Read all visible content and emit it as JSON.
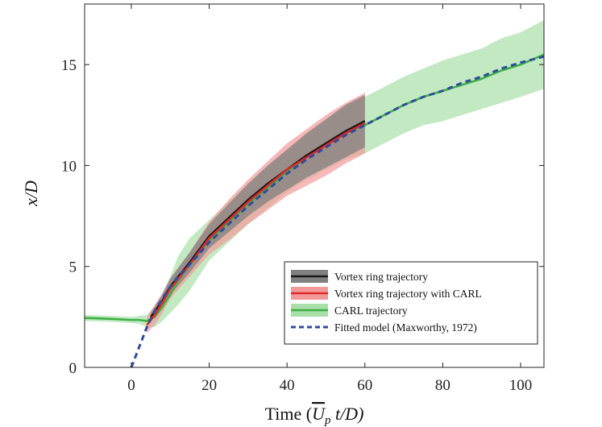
{
  "chart_data": {
    "type": "line",
    "title": "",
    "xlabel": "Time",
    "xlabel_math": "(U̅p t/D)",
    "xlabel_parts": {
      "prefix": "Time  (",
      "U": "U",
      "p": "p",
      "rest": " t/D)"
    },
    "ylabel": "x/D",
    "xlim": [
      -12,
      106
    ],
    "ylim": [
      0,
      18
    ],
    "xticks": [
      0,
      20,
      40,
      60,
      80,
      100
    ],
    "yticks": [
      0,
      5,
      10,
      15
    ],
    "grid": false,
    "legend_position": "lower-right",
    "series": [
      {
        "name": "Vortex ring trajectory",
        "color": "#1a1a1a",
        "band_color": "#808080",
        "x": [
          5,
          8,
          10,
          15,
          20,
          25,
          30,
          35,
          40,
          45,
          50,
          55,
          60
        ],
        "y": [
          2.5,
          3.3,
          4.0,
          5.2,
          6.5,
          7.4,
          8.3,
          9.1,
          9.8,
          10.5,
          11.1,
          11.7,
          12.2
        ],
        "band_halfwidth": [
          0.2,
          0.3,
          0.4,
          0.5,
          0.6,
          0.7,
          0.8,
          0.9,
          1.0,
          1.1,
          1.2,
          1.3,
          1.3
        ]
      },
      {
        "name": "Vortex ring trajectory with CARL",
        "color": "#e0282a",
        "band_color": "#f29a9a",
        "x": [
          4,
          6,
          8,
          10,
          15,
          20,
          25,
          30,
          35,
          40,
          45,
          50,
          55,
          60
        ],
        "y": [
          2.1,
          2.6,
          3.2,
          3.9,
          5.1,
          6.4,
          7.3,
          8.2,
          9.0,
          9.8,
          10.4,
          11.0,
          11.6,
          12.1
        ],
        "band_halfwidth": [
          0.4,
          0.5,
          0.5,
          0.5,
          0.6,
          0.8,
          1.0,
          1.1,
          1.2,
          1.3,
          1.4,
          1.5,
          1.5,
          1.5
        ]
      },
      {
        "name": "CARL trajectory",
        "color": "#3cb043",
        "band_color": "#a8dfa8",
        "x": [
          -12,
          -5,
          0,
          2,
          4,
          6,
          8,
          10,
          12,
          15,
          20,
          25,
          30,
          35,
          40,
          45,
          50,
          55,
          60,
          65,
          70,
          75,
          80,
          85,
          90,
          95,
          100,
          106
        ],
        "y": [
          2.45,
          2.4,
          2.35,
          2.35,
          2.3,
          2.5,
          3.0,
          3.6,
          4.3,
          5.1,
          6.3,
          7.2,
          8.1,
          8.9,
          9.7,
          10.4,
          11.0,
          11.6,
          12.0,
          12.5,
          13.0,
          13.4,
          13.7,
          14.0,
          14.3,
          14.7,
          15.0,
          15.5
        ],
        "band_halfwidth": [
          0.15,
          0.15,
          0.15,
          0.2,
          0.3,
          0.5,
          0.7,
          0.9,
          1.2,
          1.3,
          1.0,
          1.0,
          1.0,
          1.0,
          1.0,
          1.1,
          1.2,
          1.3,
          1.4,
          1.4,
          1.4,
          1.4,
          1.5,
          1.5,
          1.5,
          1.6,
          1.6,
          1.7
        ]
      },
      {
        "name": "Fitted model (Maxworthy, 1972)",
        "color": "#2f4aa0",
        "dashed": true,
        "x": [
          0,
          2,
          4,
          6,
          8,
          10,
          12,
          15,
          20,
          25,
          30,
          35,
          40,
          45,
          50,
          55,
          60,
          65,
          70,
          75,
          80,
          85,
          90,
          95,
          100,
          106
        ],
        "y": [
          0,
          1.0,
          2.0,
          2.8,
          3.4,
          4.0,
          4.5,
          5.1,
          6.2,
          7.1,
          8.0,
          8.8,
          9.6,
          10.3,
          10.9,
          11.5,
          12.0,
          12.5,
          13.0,
          13.4,
          13.7,
          14.1,
          14.4,
          14.8,
          15.1,
          15.4
        ]
      }
    ]
  }
}
